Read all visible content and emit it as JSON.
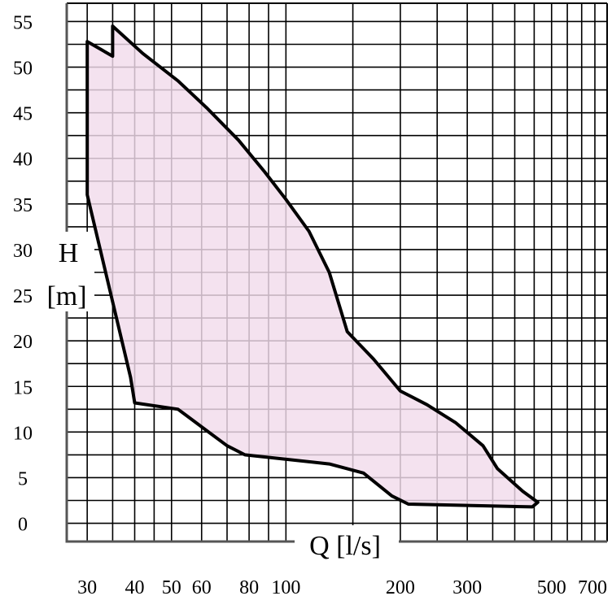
{
  "chart_data": {
    "type": "area",
    "title": "",
    "xlabel": "Q [l/s]",
    "ylabel_line1": "H",
    "ylabel_line2": "[m]",
    "x_scale": "log",
    "xlim": [
      26.5,
      700
    ],
    "ylim": [
      -2,
      57
    ],
    "x_tick_labels": [
      {
        "value": 30,
        "label": "30"
      },
      {
        "value": 40,
        "label": "40"
      },
      {
        "value": 50,
        "label": "50"
      },
      {
        "value": 60,
        "label": "60"
      },
      {
        "value": 80,
        "label": "80"
      },
      {
        "value": 100,
        "label": "100"
      },
      {
        "value": 200,
        "label": "200"
      },
      {
        "value": 300,
        "label": "300"
      },
      {
        "value": 500,
        "label": "500"
      },
      {
        "value": 700,
        "label": "700"
      }
    ],
    "x_grid": [
      30,
      35,
      40,
      45,
      50,
      60,
      70,
      80,
      90,
      100,
      150,
      200,
      250,
      300,
      350,
      400,
      450,
      500,
      550,
      600,
      650,
      700
    ],
    "y_ticks": [
      0,
      5,
      10,
      15,
      20,
      25,
      30,
      35,
      40,
      45,
      50,
      55
    ],
    "y_grid_step": 2.5,
    "grid": true,
    "legend": "none",
    "series": [
      {
        "fill": "#f2dcec",
        "stroke": "#000000",
        "points": [
          [
            30,
            52.8
          ],
          [
            35,
            51.2
          ],
          [
            35,
            54.5
          ],
          [
            42,
            51.5
          ],
          [
            52,
            48.5
          ],
          [
            62,
            45.5
          ],
          [
            75,
            42
          ],
          [
            88,
            38.5
          ],
          [
            100,
            35.5
          ],
          [
            115,
            32
          ],
          [
            130,
            27.5
          ],
          [
            145,
            21
          ],
          [
            170,
            18
          ],
          [
            200,
            14.5
          ],
          [
            235,
            13
          ],
          [
            280,
            11
          ],
          [
            330,
            8.5
          ],
          [
            360,
            6
          ],
          [
            420,
            3.5
          ],
          [
            460,
            2.3
          ],
          [
            445,
            1.8
          ],
          [
            210,
            2.1
          ],
          [
            190,
            3
          ],
          [
            160,
            5.5
          ],
          [
            130,
            6.5
          ],
          [
            78,
            7.5
          ],
          [
            70,
            8.5
          ],
          [
            52,
            12.5
          ],
          [
            40,
            13.2
          ],
          [
            39,
            16
          ],
          [
            30,
            36
          ]
        ]
      }
    ]
  },
  "colors": {
    "region_fill": "#f2dcec",
    "region_stroke": "#000000",
    "grid": "#000000",
    "axis": "#555555"
  }
}
